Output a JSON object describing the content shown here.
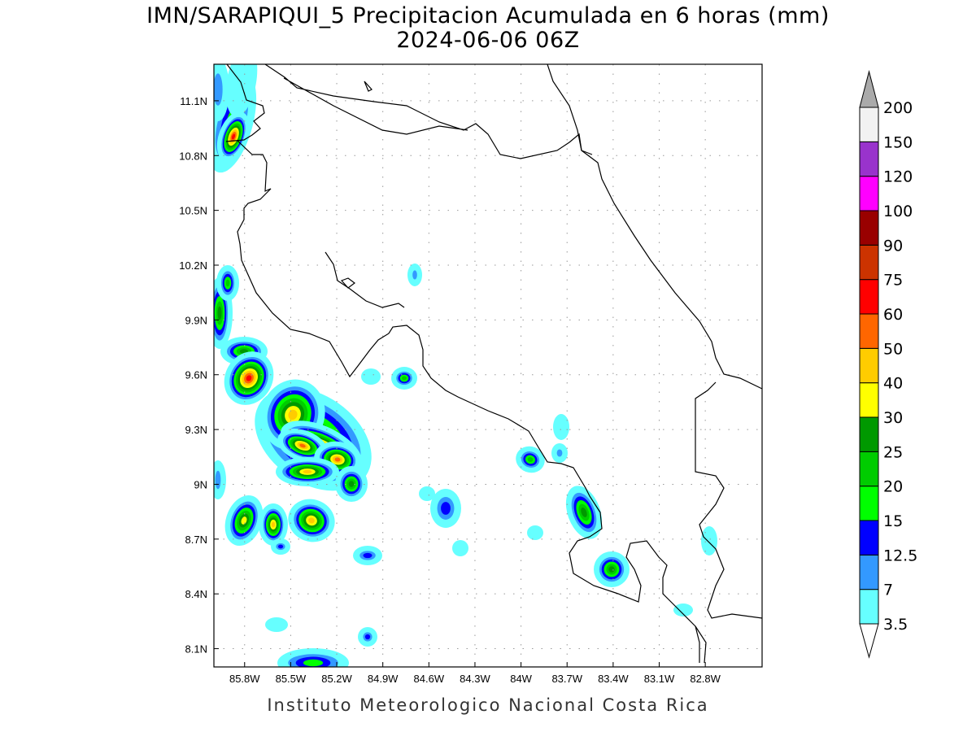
{
  "header": {
    "title": "IMN/SARAPIQUI_5 Precipitacion Acumulada en 6 horas (mm)",
    "subtitle": "2024-06-06 06Z"
  },
  "footer": "Instituto Meteorologico Nacional Costa Rica",
  "map": {
    "lon_range": [
      -86.0,
      -82.43
    ],
    "lat_range": [
      8.0,
      11.3
    ],
    "grid": "dotted",
    "lon_ticks": [
      "85.8W",
      "85.5W",
      "85.2W",
      "84.9W",
      "84.6W",
      "84.3W",
      "84W",
      "83.7W",
      "83.4W",
      "83.1W",
      "82.8W"
    ],
    "lat_ticks": [
      "11.1N",
      "10.8N",
      "10.5N",
      "10.2N",
      "9.9N",
      "9.6N",
      "9.3N",
      "9N",
      "8.7N",
      "8.4N",
      "8.1N"
    ]
  },
  "colorbar": {
    "labels": [
      "3.5",
      "7",
      "12.5",
      "15",
      "20",
      "25",
      "30",
      "40",
      "50",
      "60",
      "75",
      "90",
      "100",
      "120",
      "150",
      "200"
    ],
    "colors": [
      "#66ffff",
      "#3399ff",
      "#0000ff",
      "#00ff00",
      "#00cc00",
      "#009900",
      "#ffff00",
      "#ffcc00",
      "#ff6600",
      "#ff0000",
      "#cc3300",
      "#990000",
      "#ff00ff",
      "#9933cc",
      "#f2f2f2"
    ],
    "over_color": "#aaaaaa",
    "under_color": "#ffffff"
  }
}
